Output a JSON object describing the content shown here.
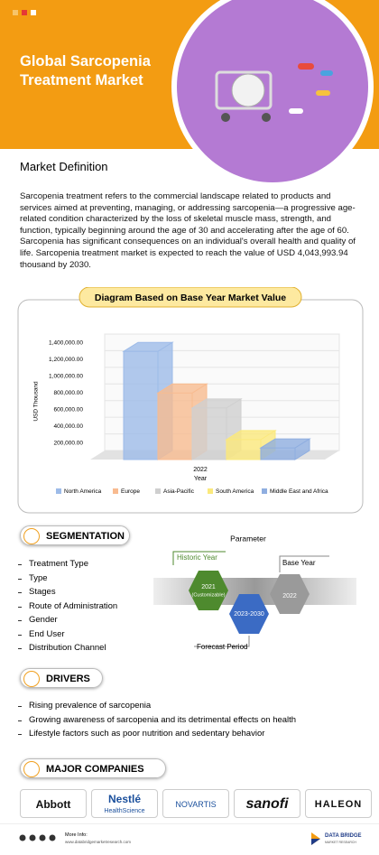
{
  "header": {
    "title": "Global Sarcopenia Treatment Market"
  },
  "definition": {
    "heading": "Market Definition",
    "text": "Sarcopenia treatment refers to the commercial landscape related to products and services aimed at preventing, managing, or addressing sarcopenia—a progressive age-related condition characterized by the loss of skeletal muscle mass, strength, and function, typically beginning around the age of 30 and accelerating after the age of 60. Sarcopenia has significant consequences on an individual's overall health and quality of life. Sarcopenia treatment market is expected to reach the value of USD 4,043,993.94 thousand by 2030."
  },
  "chart_data": {
    "type": "bar",
    "title": "Diagram Based on Base Year Market Value",
    "xlabel": "Year",
    "ylabel": "USD Thousand",
    "categories": [
      "2022"
    ],
    "series": [
      {
        "name": "North America",
        "color": "#9dbbe8",
        "values": [
          1300000
        ]
      },
      {
        "name": "Europe",
        "color": "#f8bb90",
        "values": [
          800000
        ]
      },
      {
        "name": "Asia-Pacific",
        "color": "#cfcfcf",
        "values": [
          620000
        ]
      },
      {
        "name": "South America",
        "color": "#fbe97c",
        "values": [
          240000
        ]
      },
      {
        "name": "Middle East and Africa",
        "color": "#8faee0",
        "values": [
          140000
        ]
      }
    ],
    "ylim": [
      0,
      1400000
    ],
    "yticks": [
      {
        "value": 200000,
        "label": "200,000.00"
      },
      {
        "value": 400000,
        "label": "400,000.00"
      },
      {
        "value": 600000,
        "label": "600,000.00"
      },
      {
        "value": 800000,
        "label": "800,000.00"
      },
      {
        "value": 1000000,
        "label": "1,000,000.00"
      },
      {
        "value": 1200000,
        "label": "1,200,000.00"
      },
      {
        "value": 1400000,
        "label": "1,400,000.00"
      }
    ],
    "legend": "bottom"
  },
  "segmentation": {
    "heading": "SEGMENTATION",
    "items": [
      "Treatment Type",
      "Type",
      "Stages",
      "Route of Administration",
      "Gender",
      "End User",
      "Distribution Channel"
    ],
    "parameter": {
      "title": "Parameter",
      "historic_label": "Historic Year",
      "historic_year": "2021",
      "historic_note": "(Customizable)",
      "base_label": "Base Year",
      "base_year": "2022",
      "forecast_years": "2023-2030",
      "forecast_label": "Forecast Period"
    }
  },
  "drivers": {
    "heading": "DRIVERS",
    "items": [
      "Rising prevalence of sarcopenia",
      "Growing awareness of sarcopenia and its detrimental effects on health",
      "Lifestyle factors such as poor nutrition and sedentary behavior"
    ]
  },
  "companies": {
    "heading": "MAJOR COMPANIES",
    "logos": [
      {
        "name": "Abbott"
      },
      {
        "name": "Nestlé",
        "sub": "HealthScience"
      },
      {
        "name": "NOVARTIS"
      },
      {
        "name": "sanofi"
      },
      {
        "name": "HALEON"
      }
    ]
  },
  "footer": {
    "more_info": "More Info:",
    "url": "www.databridgemarketresearch.com",
    "brand": "DATA BRIDGE",
    "brand_sub": "MARKET RESEARCH"
  }
}
